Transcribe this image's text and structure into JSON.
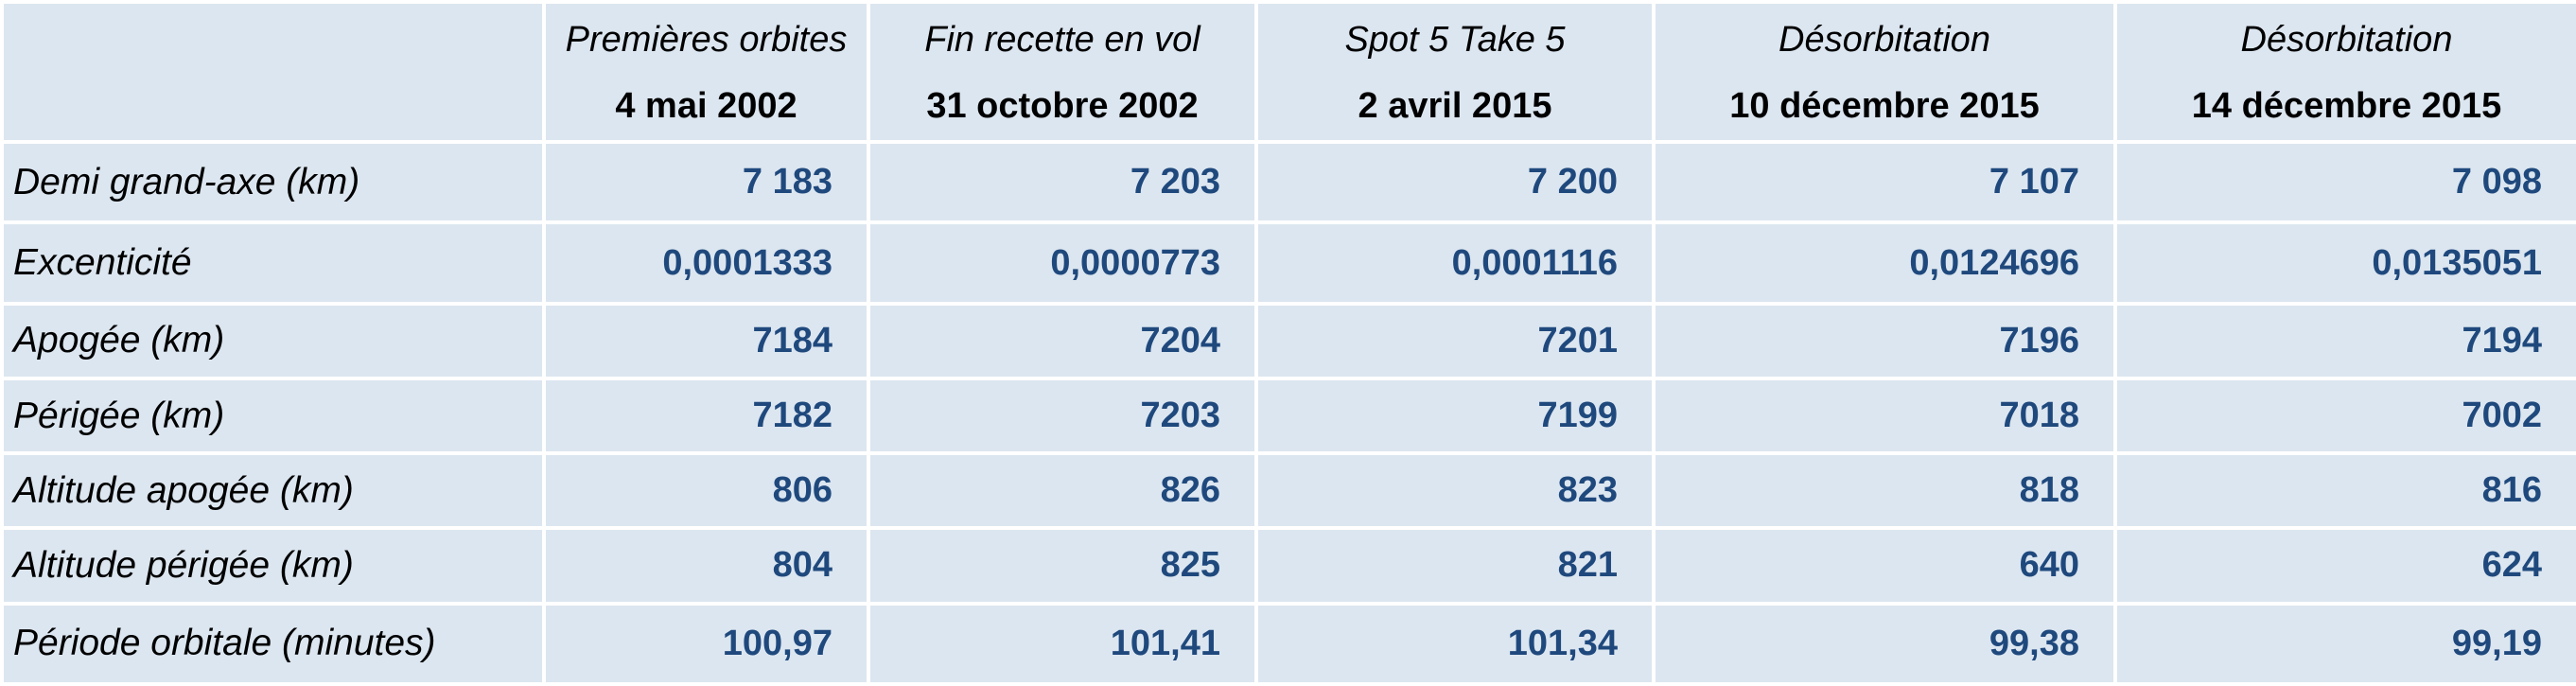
{
  "columns": [
    {
      "event": "Premières orbites",
      "date": "4 mai 2002"
    },
    {
      "event": "Fin recette en vol",
      "date": "31 octobre 2002"
    },
    {
      "event": "Spot 5 Take 5",
      "date": "2 avril 2015"
    },
    {
      "event": "Désorbitation",
      "date": "10 décembre 2015"
    },
    {
      "event": "Désorbitation",
      "date": "14 décembre 2015"
    }
  ],
  "rows": [
    {
      "label": "Demi grand-axe (km)",
      "values": [
        "7 183",
        "7 203",
        "7 200",
        "7 107",
        "7 098"
      ]
    },
    {
      "label": "Excenticité",
      "values": [
        "0,0001333",
        "0,0000773",
        "0,0001116",
        "0,0124696",
        "0,0135051"
      ]
    },
    {
      "label": "Apogée (km)",
      "values": [
        "7184",
        "7204",
        "7201",
        "7196",
        "7194"
      ]
    },
    {
      "label": "Périgée (km)",
      "values": [
        "7182",
        "7203",
        "7199",
        "7018",
        "7002"
      ]
    },
    {
      "label": "Altitude apogée (km)",
      "values": [
        "806",
        "826",
        "823",
        "818",
        "816"
      ]
    },
    {
      "label": "Altitude périgée (km)",
      "values": [
        "804",
        "825",
        "821",
        "640",
        "624"
      ]
    },
    {
      "label": "Période orbitale (minutes)",
      "values": [
        "100,97",
        "101,41",
        "101,34",
        "99,38",
        "99,19"
      ]
    }
  ],
  "colors": {
    "cell_background": "#dce6f0",
    "value_text": "#1f497d",
    "label_text": "#000000",
    "grid_lines": "#ffffff"
  }
}
